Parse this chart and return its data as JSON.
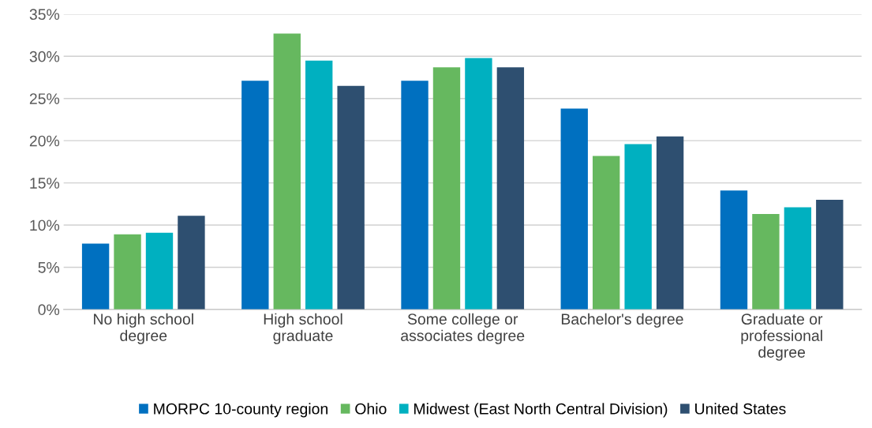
{
  "chart_data": {
    "type": "bar",
    "categories": [
      "No high school\ndegree",
      "High school\ngraduate",
      "Some college or\nassociates degree",
      "Bachelor's degree",
      "Graduate or\nprofessional\ndegree"
    ],
    "series": [
      {
        "name": "MORPC 10-county region",
        "color": "#0070c0",
        "values": [
          7.8,
          27.1,
          27.1,
          23.8,
          14.1
        ]
      },
      {
        "name": "Ohio",
        "color": "#66b85f",
        "values": [
          8.9,
          32.7,
          28.7,
          18.2,
          11.3
        ]
      },
      {
        "name": "Midwest (East North Central Division)",
        "color": "#00b0c0",
        "values": [
          9.1,
          29.5,
          29.8,
          19.6,
          12.1
        ]
      },
      {
        "name": "United States",
        "color": "#2e4f70",
        "values": [
          11.1,
          26.5,
          28.7,
          20.5,
          13.0
        ]
      }
    ],
    "ylim": [
      0,
      35
    ],
    "yticks": [
      {
        "value": 0,
        "label": "0%"
      },
      {
        "value": 5,
        "label": "5%"
      },
      {
        "value": 10,
        "label": "10%"
      },
      {
        "value": 15,
        "label": "15%"
      },
      {
        "value": 20,
        "label": "20%"
      },
      {
        "value": 25,
        "label": "25%"
      },
      {
        "value": 30,
        "label": "30%"
      },
      {
        "value": 35,
        "label": "35%"
      }
    ],
    "grid": "y",
    "legend": "bottom"
  }
}
